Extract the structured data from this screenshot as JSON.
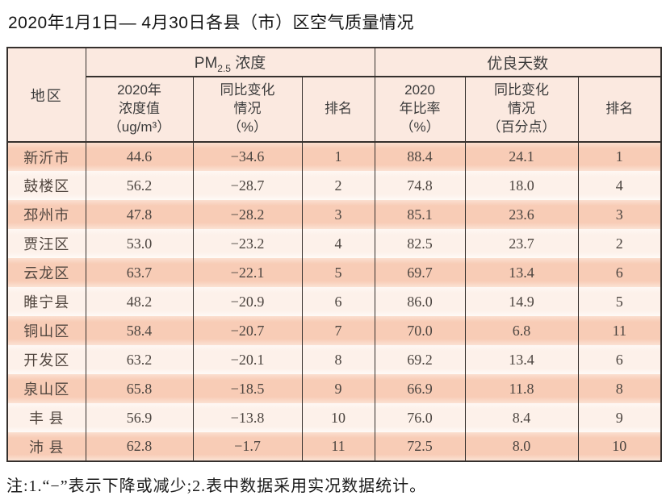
{
  "title": "2020年1月1日— 4月30日各县（市）区空气质量情况",
  "table": {
    "header": {
      "region": "地区",
      "pm25": {
        "prefix": "PM",
        "sub": "2.5",
        "suffix": " 浓度"
      },
      "good_days": "优良天数",
      "sub": [
        "2020年\n浓度值\n（ug/m³）",
        "同比变化\n情况\n（%）",
        "排名",
        "2020\n年比率\n（%）",
        "同比变化\n情况\n（百分点）",
        "排名"
      ]
    },
    "rows": [
      {
        "region": "新沂市",
        "pm25_value": "44.6",
        "pm25_change": "−34.6",
        "pm25_rank": "1",
        "good_rate": "88.4",
        "good_change": "24.1",
        "good_rank": "1"
      },
      {
        "region": "鼓楼区",
        "pm25_value": "56.2",
        "pm25_change": "−28.7",
        "pm25_rank": "2",
        "good_rate": "74.8",
        "good_change": "18.0",
        "good_rank": "4"
      },
      {
        "region": "邳州市",
        "pm25_value": "47.8",
        "pm25_change": "−28.2",
        "pm25_rank": "3",
        "good_rate": "85.1",
        "good_change": "23.6",
        "good_rank": "3"
      },
      {
        "region": "贾汪区",
        "pm25_value": "53.0",
        "pm25_change": "−23.2",
        "pm25_rank": "4",
        "good_rate": "82.5",
        "good_change": "23.7",
        "good_rank": "2"
      },
      {
        "region": "云龙区",
        "pm25_value": "63.7",
        "pm25_change": "−22.1",
        "pm25_rank": "5",
        "good_rate": "69.7",
        "good_change": "13.4",
        "good_rank": "6"
      },
      {
        "region": "睢宁县",
        "pm25_value": "48.2",
        "pm25_change": "−20.9",
        "pm25_rank": "6",
        "good_rate": "86.0",
        "good_change": "14.9",
        "good_rank": "5"
      },
      {
        "region": "铜山区",
        "pm25_value": "58.4",
        "pm25_change": "−20.7",
        "pm25_rank": "7",
        "good_rate": "70.0",
        "good_change": "6.8",
        "good_rank": "11"
      },
      {
        "region": "开发区",
        "pm25_value": "63.2",
        "pm25_change": "−20.1",
        "pm25_rank": "8",
        "good_rate": "69.2",
        "good_change": "13.4",
        "good_rank": "6"
      },
      {
        "region": "泉山区",
        "pm25_value": "65.8",
        "pm25_change": "−18.5",
        "pm25_rank": "9",
        "good_rate": "66.9",
        "good_change": "11.8",
        "good_rank": "8"
      },
      {
        "region": "丰 县",
        "pm25_value": "56.9",
        "pm25_change": "−13.8",
        "pm25_rank": "10",
        "good_rate": "76.0",
        "good_change": "8.4",
        "good_rank": "9"
      },
      {
        "region": "沛 县",
        "pm25_value": "62.8",
        "pm25_change": "−1.7",
        "pm25_rank": "11",
        "good_rate": "72.5",
        "good_change": "8.0",
        "good_rank": "10"
      }
    ]
  },
  "note": "注:1.“−”表示下降或减少;2.表中数据采用实况数据统计。",
  "colors": {
    "row_salmon": "#f8ccb6",
    "row_light": "#fdf1ea",
    "header_bg": "#fbe9e0",
    "border": "#35302d"
  }
}
